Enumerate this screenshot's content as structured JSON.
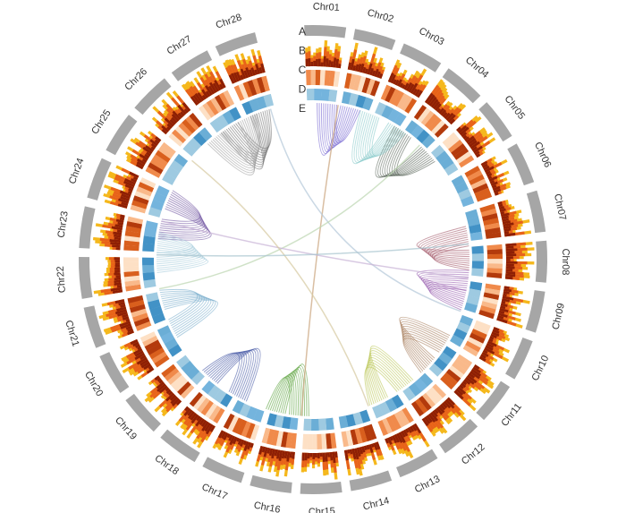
{
  "chart_data": {
    "type": "circos",
    "categories": [
      "Chr01",
      "Chr02",
      "Chr03",
      "Chr04",
      "Chr05",
      "Chr06",
      "Chr07",
      "Chr08",
      "Chr09",
      "Chr10",
      "Chr11",
      "Chr12",
      "Chr13",
      "Chr14",
      "Chr15",
      "Chr16",
      "Chr17",
      "Chr18",
      "Chr19",
      "Chr20",
      "Chr21",
      "Chr22",
      "Chr23",
      "Chr24",
      "Chr25",
      "Chr26",
      "Chr27",
      "Chr28"
    ],
    "tracks": [
      "A",
      "B",
      "C",
      "D",
      "E"
    ]
  }
}
